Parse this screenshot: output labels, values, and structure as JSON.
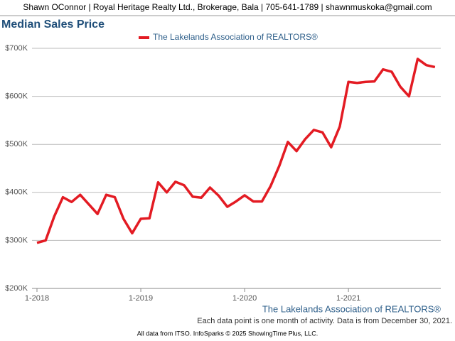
{
  "header": "Shawn OConnor | Royal Heritage Realty Ltd., Brokerage, Bala | 705-641-1789 | shawnmuskoka@gmail.com",
  "chart_data": {
    "type": "line",
    "title": "Median Sales Price",
    "categories": [
      "1-2018",
      null,
      null,
      null,
      null,
      null,
      null,
      null,
      null,
      null,
      null,
      null,
      "1-2019",
      null,
      null,
      null,
      null,
      null,
      null,
      null,
      null,
      null,
      null,
      null,
      "1-2020",
      null,
      null,
      null,
      null,
      null,
      null,
      null,
      null,
      null,
      null,
      null,
      "1-2021",
      null,
      null,
      null,
      null,
      null,
      null,
      null,
      null,
      null,
      null
    ],
    "series": [
      {
        "name": "The Lakelands Association of REALTORS®",
        "color": "#e31b23",
        "values": [
          295000,
          300000,
          350000,
          390000,
          380000,
          395000,
          375000,
          355000,
          395000,
          390000,
          345000,
          315000,
          345000,
          346000,
          421000,
          400000,
          422000,
          415000,
          391000,
          389000,
          410000,
          393000,
          370000,
          381000,
          394000,
          381000,
          381000,
          413000,
          455000,
          505000,
          486000,
          511000,
          530000,
          525000,
          494000,
          537000,
          630000,
          628000,
          630000,
          631000,
          656000,
          651000,
          620000,
          600000,
          678000,
          665000,
          661000
        ]
      }
    ],
    "ylim": [
      200000,
      700000
    ],
    "yticks": [
      {
        "value": 200000,
        "label": "$200K"
      },
      {
        "value": 300000,
        "label": "$300K"
      },
      {
        "value": 400000,
        "label": "$400K"
      },
      {
        "value": 500000,
        "label": "$500K"
      },
      {
        "value": 600000,
        "label": "$600K"
      },
      {
        "value": 700000,
        "label": "$700K"
      }
    ],
    "grid": true,
    "source_label": "The Lakelands Association of REALTORS®",
    "note": "Each data point is one month of activity. Data is from December 30, 2021.",
    "footer": "All data from ITSO. InfoSparks © 2025 ShowingTime Plus, LLC."
  }
}
